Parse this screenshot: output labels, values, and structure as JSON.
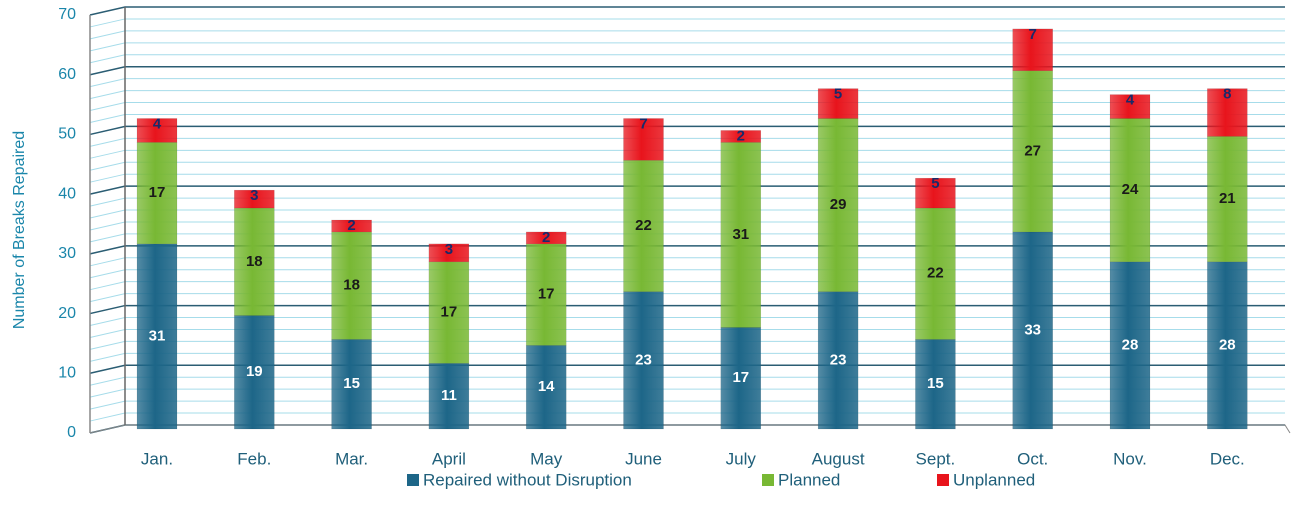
{
  "chart_data": {
    "type": "bar",
    "stacked": true,
    "ylabel": "Number of Breaks Repaired",
    "categories": [
      "Jan.",
      "Feb.",
      "Mar.",
      "April",
      "May",
      "June",
      "July",
      "August",
      "Sept.",
      "Oct.",
      "Nov.",
      "Dec."
    ],
    "series": [
      {
        "name": "Repaired without Disruption",
        "color": "#1d6688",
        "values": [
          31,
          19,
          15,
          11,
          14,
          23,
          17,
          23,
          15,
          33,
          28,
          28
        ]
      },
      {
        "name": "Planned",
        "color": "#78b834",
        "values": [
          17,
          18,
          18,
          17,
          17,
          22,
          31,
          29,
          22,
          27,
          24,
          21
        ]
      },
      {
        "name": "Unplanned",
        "color": "#e8141c",
        "values": [
          4,
          3,
          2,
          3,
          2,
          7,
          2,
          5,
          5,
          7,
          4,
          8
        ]
      }
    ],
    "ylim": [
      0,
      70
    ],
    "yticks": [
      0,
      10,
      20,
      30,
      40,
      50,
      60,
      70
    ],
    "grid": true,
    "legend": "bottom"
  }
}
